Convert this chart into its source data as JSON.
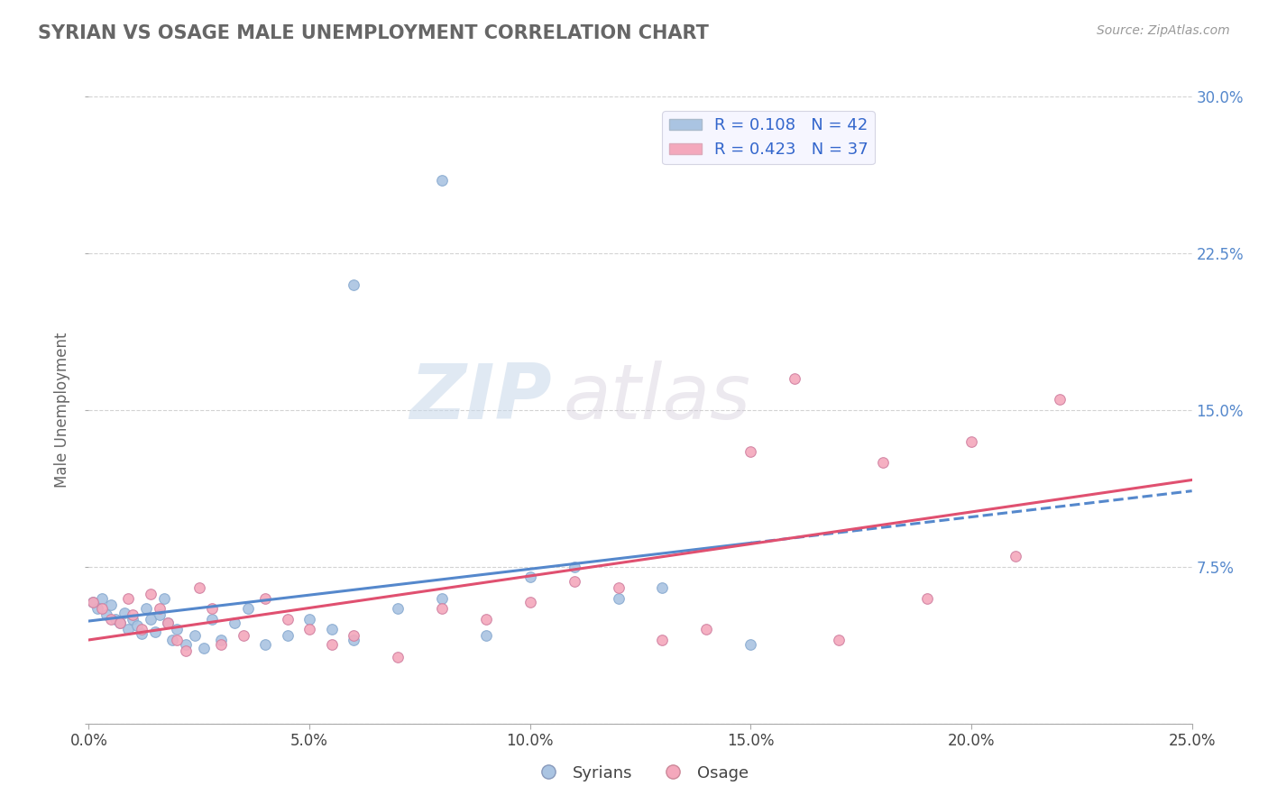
{
  "title": "SYRIAN VS OSAGE MALE UNEMPLOYMENT CORRELATION CHART",
  "source": "Source: ZipAtlas.com",
  "ylabel": "Male Unemployment",
  "xmin": 0.0,
  "xmax": 0.25,
  "ymin": 0.0,
  "ymax": 0.3,
  "yticks": [
    0.0,
    0.075,
    0.15,
    0.225,
    0.3
  ],
  "ytick_labels": [
    "",
    "7.5%",
    "15.0%",
    "22.5%",
    "30.0%"
  ],
  "xticks": [
    0.0,
    0.05,
    0.1,
    0.15,
    0.2,
    0.25
  ],
  "xtick_labels": [
    "0.0%",
    "",
    "",
    "",
    "",
    "25.0%"
  ],
  "background_color": "#ffffff",
  "plot_bg_color": "#ffffff",
  "grid_color": "#c8c8c8",
  "syrian_color": "#aac4e2",
  "osage_color": "#f4a8bc",
  "syrian_line_color": "#5588cc",
  "osage_line_color": "#e05070",
  "r_syrian": 0.108,
  "n_syrian": 42,
  "r_osage": 0.423,
  "n_osage": 37,
  "watermark_zip": "ZIP",
  "watermark_atlas": "atlas",
  "syrian_x": [
    0.001,
    0.002,
    0.003,
    0.004,
    0.005,
    0.006,
    0.007,
    0.008,
    0.009,
    0.01,
    0.011,
    0.012,
    0.013,
    0.014,
    0.015,
    0.016,
    0.017,
    0.018,
    0.019,
    0.02,
    0.022,
    0.024,
    0.026,
    0.028,
    0.03,
    0.033,
    0.036,
    0.04,
    0.045,
    0.05,
    0.055,
    0.06,
    0.07,
    0.08,
    0.09,
    0.1,
    0.11,
    0.12,
    0.13,
    0.15,
    0.08,
    0.06
  ],
  "syrian_y": [
    0.058,
    0.055,
    0.06,
    0.052,
    0.057,
    0.05,
    0.048,
    0.053,
    0.045,
    0.05,
    0.047,
    0.043,
    0.055,
    0.05,
    0.044,
    0.052,
    0.06,
    0.048,
    0.04,
    0.045,
    0.038,
    0.042,
    0.036,
    0.05,
    0.04,
    0.048,
    0.055,
    0.038,
    0.042,
    0.05,
    0.045,
    0.04,
    0.055,
    0.06,
    0.042,
    0.07,
    0.075,
    0.06,
    0.065,
    0.038,
    0.26,
    0.21
  ],
  "osage_x": [
    0.001,
    0.003,
    0.005,
    0.007,
    0.009,
    0.01,
    0.012,
    0.014,
    0.016,
    0.018,
    0.02,
    0.022,
    0.025,
    0.028,
    0.03,
    0.035,
    0.04,
    0.045,
    0.05,
    0.055,
    0.06,
    0.07,
    0.08,
    0.09,
    0.1,
    0.11,
    0.12,
    0.13,
    0.14,
    0.15,
    0.16,
    0.17,
    0.18,
    0.19,
    0.2,
    0.21,
    0.22
  ],
  "osage_y": [
    0.058,
    0.055,
    0.05,
    0.048,
    0.06,
    0.052,
    0.045,
    0.062,
    0.055,
    0.048,
    0.04,
    0.035,
    0.065,
    0.055,
    0.038,
    0.042,
    0.06,
    0.05,
    0.045,
    0.038,
    0.042,
    0.032,
    0.055,
    0.05,
    0.058,
    0.068,
    0.065,
    0.04,
    0.045,
    0.13,
    0.165,
    0.04,
    0.125,
    0.06,
    0.135,
    0.08,
    0.155
  ]
}
